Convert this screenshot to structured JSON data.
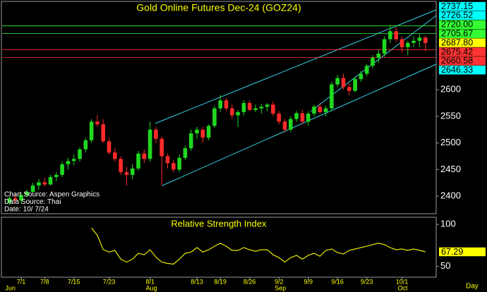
{
  "chart_data": [
    {
      "type": "candlestick",
      "title": "Gold Online Futures Dec-24 (GOZ24)",
      "categories": [
        null,
        null,
        "7/1",
        null,
        null,
        null,
        "7/8",
        null,
        null,
        null,
        null,
        "7/15",
        null,
        null,
        null,
        null,
        null,
        "7/23",
        null,
        null,
        null,
        null,
        null,
        null,
        "8/1",
        null,
        null,
        null,
        null,
        null,
        null,
        null,
        "8/13",
        null,
        null,
        null,
        "8/19",
        null,
        null,
        null,
        null,
        "8/26",
        null,
        null,
        null,
        null,
        "9/2",
        null,
        null,
        null,
        null,
        "9/9",
        null,
        null,
        null,
        null,
        "9/16",
        null,
        null,
        null,
        null,
        "9/23",
        null,
        null,
        null,
        null,
        null,
        "10/1",
        null,
        null,
        null,
        null
      ],
      "months": [
        "Jun",
        null,
        null,
        null,
        null,
        null,
        null,
        null,
        null,
        null,
        null,
        null,
        null,
        null,
        null,
        null,
        null,
        null,
        null,
        null,
        null,
        null,
        null,
        null,
        "Aug",
        null,
        null,
        null,
        null,
        null,
        null,
        null,
        null,
        null,
        null,
        null,
        null,
        null,
        null,
        null,
        null,
        null,
        null,
        null,
        null,
        null,
        "Sep",
        null,
        null,
        null,
        null,
        null,
        null,
        null,
        null,
        null,
        null,
        null,
        null,
        null,
        null,
        null,
        null,
        null,
        null,
        null,
        null,
        "Oct",
        null,
        null,
        null,
        null
      ],
      "open": [
        2388,
        2396,
        2392,
        2402,
        2408,
        2420,
        2426,
        2422,
        2436,
        2440,
        2460,
        2466,
        2470,
        2488,
        2505,
        2540,
        2535,
        2503,
        2482,
        2470,
        2445,
        2440,
        2452,
        2480,
        2470,
        2525,
        2508,
        2475,
        2462,
        2450,
        2472,
        2490,
        2518,
        2525,
        2510,
        2532,
        2565,
        2580,
        2565,
        2552,
        2558,
        2575,
        2562,
        2565,
        2568,
        2572,
        2555,
        2540,
        2525,
        2545,
        2556,
        2540,
        2555,
        2568,
        2558,
        2565,
        2610,
        2622,
        2605,
        2598,
        2620,
        2630,
        2645,
        2660,
        2668,
        2695,
        2710,
        2695,
        2680,
        2688,
        2692,
        2698
      ],
      "high": [
        2400,
        2403,
        2405,
        2412,
        2425,
        2432,
        2434,
        2440,
        2445,
        2465,
        2472,
        2478,
        2492,
        2510,
        2545,
        2552,
        2545,
        2510,
        2490,
        2475,
        2455,
        2460,
        2485,
        2488,
        2540,
        2530,
        2512,
        2480,
        2468,
        2478,
        2495,
        2525,
        2530,
        2530,
        2535,
        2570,
        2590,
        2585,
        2572,
        2562,
        2580,
        2580,
        2572,
        2574,
        2575,
        2578,
        2560,
        2545,
        2550,
        2560,
        2562,
        2560,
        2572,
        2575,
        2570,
        2615,
        2628,
        2630,
        2612,
        2625,
        2635,
        2648,
        2665,
        2675,
        2700,
        2722,
        2718,
        2700,
        2692,
        2700,
        2705,
        2702
      ],
      "low": [
        2383,
        2388,
        2386,
        2398,
        2405,
        2412,
        2418,
        2420,
        2428,
        2436,
        2450,
        2458,
        2465,
        2482,
        2500,
        2530,
        2500,
        2478,
        2465,
        2440,
        2420,
        2432,
        2448,
        2462,
        2465,
        2500,
        2420,
        2452,
        2445,
        2445,
        2468,
        2485,
        2508,
        2500,
        2505,
        2528,
        2558,
        2560,
        2545,
        2530,
        2552,
        2560,
        2558,
        2555,
        2560,
        2550,
        2535,
        2520,
        2520,
        2540,
        2535,
        2532,
        2550,
        2555,
        2550,
        2560,
        2605,
        2600,
        2590,
        2595,
        2615,
        2625,
        2640,
        2650,
        2662,
        2688,
        2690,
        2670,
        2665,
        2680,
        2680,
        2672
      ],
      "close": [
        2396,
        2392,
        2402,
        2408,
        2420,
        2426,
        2422,
        2436,
        2440,
        2460,
        2466,
        2470,
        2488,
        2505,
        2540,
        2535,
        2503,
        2482,
        2470,
        2445,
        2440,
        2452,
        2480,
        2470,
        2525,
        2508,
        2475,
        2462,
        2450,
        2472,
        2490,
        2518,
        2525,
        2510,
        2532,
        2565,
        2580,
        2565,
        2552,
        2558,
        2575,
        2562,
        2565,
        2568,
        2572,
        2555,
        2540,
        2525,
        2545,
        2556,
        2540,
        2555,
        2568,
        2558,
        2565,
        2610,
        2622,
        2605,
        2598,
        2620,
        2630,
        2645,
        2660,
        2668,
        2695,
        2710,
        2695,
        2680,
        2688,
        2692,
        2698,
        2687.8
      ],
      "up_color": "#1fd81f",
      "down_color": "#ff2a2a",
      "ylim": [
        2367,
        2766
      ],
      "yticks": [
        2400,
        2450,
        2500,
        2550,
        2600
      ],
      "price_tags": [
        {
          "value": 2737.15,
          "color": "#00ffff"
        },
        {
          "value": 2726.52,
          "color": "#00ffff"
        },
        {
          "value": 2720,
          "label": "2720.00",
          "color": "#33ff33",
          "hline": true
        },
        {
          "value": 2705.67,
          "color": "#33ff33",
          "hline": true
        },
        {
          "value": 2687.8,
          "label": "2687.80",
          "color": "#ffff00"
        },
        {
          "value": 2675.42,
          "color": "#ff3333",
          "hline": true
        },
        {
          "value": 2660.58,
          "color": "#ff3333",
          "hline": true
        },
        {
          "value": 2646.33,
          "color": "#00ffff"
        }
      ],
      "annotations": [
        "Chart Source: Aspen Graphics",
        "Data Source: Thai",
        "Date: 10/ 7/24"
      ],
      "x_unit": "Day"
    },
    {
      "type": "line",
      "title": "Relative Strength Index",
      "values": [
        null,
        null,
        null,
        null,
        null,
        null,
        null,
        null,
        null,
        null,
        null,
        null,
        null,
        null,
        95.7,
        87,
        70,
        67,
        69,
        58.6,
        55,
        58.6,
        65.5,
        63.8,
        69.8,
        61,
        55,
        53.4,
        52.6,
        58.6,
        65.5,
        67,
        72.4,
        67,
        69.8,
        74,
        77.6,
        74,
        69,
        69,
        72.4,
        69.8,
        68,
        69.8,
        69.8,
        63.8,
        60.3,
        55,
        60.3,
        63,
        58.6,
        63,
        65.5,
        62,
        69,
        70.7,
        66.4,
        64.7,
        69,
        70.7,
        72.4,
        74,
        75.9,
        77.6,
        75.9,
        72.4,
        69.8,
        70.7,
        69,
        70.7,
        69,
        67.29
      ],
      "color": "#e8e800",
      "ylim": [
        37,
        108.6
      ],
      "yticks": [
        50,
        100
      ],
      "price_tags": [
        {
          "value": 67.29,
          "color": "#ffff00"
        }
      ]
    }
  ]
}
